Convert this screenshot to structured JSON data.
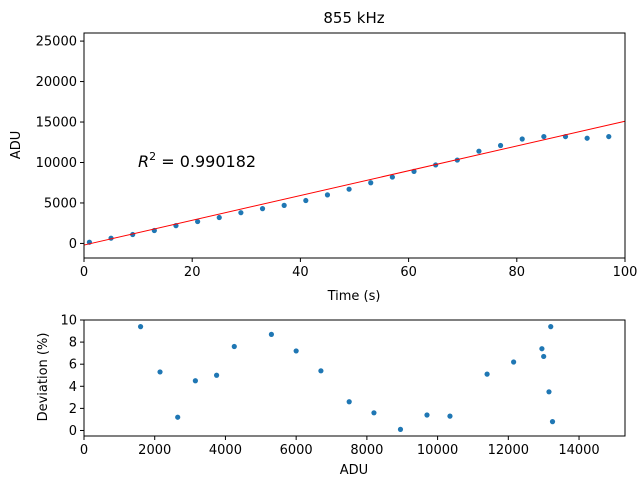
{
  "chart_data": [
    {
      "type": "scatter",
      "title": "855 kHz",
      "xlabel": "Time (s)",
      "ylabel": "ADU",
      "xlim": [
        0,
        100
      ],
      "ylim": [
        -1800,
        26000
      ],
      "xticks": [
        0,
        20,
        40,
        60,
        80,
        100
      ],
      "yticks": [
        0,
        5000,
        10000,
        15000,
        20000,
        25000
      ],
      "grid": false,
      "annotation": {
        "prefix": "R",
        "sup": "2",
        "text": " = 0.990182"
      },
      "series": [
        {
          "kind": "points",
          "color": "#1f77b4",
          "x": [
            1,
            5,
            9,
            13,
            17,
            21,
            25,
            29,
            33,
            37,
            41,
            45,
            49,
            53,
            57,
            61,
            65,
            69,
            73,
            77,
            81,
            85,
            89,
            93,
            97
          ],
          "y": [
            150,
            650,
            1100,
            1600,
            2200,
            2700,
            3200,
            3800,
            4300,
            4700,
            5300,
            6000,
            6700,
            7500,
            8200,
            8900,
            9700,
            10300,
            11400,
            12100,
            12900,
            13200,
            13200,
            13000,
            13200
          ]
        },
        {
          "kind": "fit-line",
          "color": "#ff0000",
          "x": [
            0,
            100
          ],
          "y": [
            -200,
            15100
          ]
        }
      ]
    },
    {
      "type": "scatter",
      "title": "",
      "xlabel": "ADU",
      "ylabel": "Deviation (%)",
      "xlim": [
        0,
        15300
      ],
      "ylim": [
        -0.5,
        10
      ],
      "xticks": [
        0,
        2000,
        4000,
        6000,
        8000,
        10000,
        12000,
        14000
      ],
      "yticks": [
        0,
        2,
        4,
        6,
        8,
        10
      ],
      "grid": false,
      "series": [
        {
          "kind": "points",
          "color": "#1f77b4",
          "x": [
            1600,
            2150,
            2650,
            3150,
            3750,
            4250,
            5300,
            6000,
            6700,
            7500,
            8200,
            8950,
            9700,
            10350,
            11400,
            12150,
            12950,
            13000,
            13150,
            13200,
            13250
          ],
          "y": [
            9.4,
            5.3,
            1.2,
            4.5,
            5.0,
            7.6,
            8.7,
            7.2,
            5.4,
            2.6,
            1.6,
            0.1,
            1.4,
            1.3,
            5.1,
            6.2,
            7.4,
            6.7,
            3.5,
            9.4,
            0.8
          ]
        }
      ]
    }
  ]
}
